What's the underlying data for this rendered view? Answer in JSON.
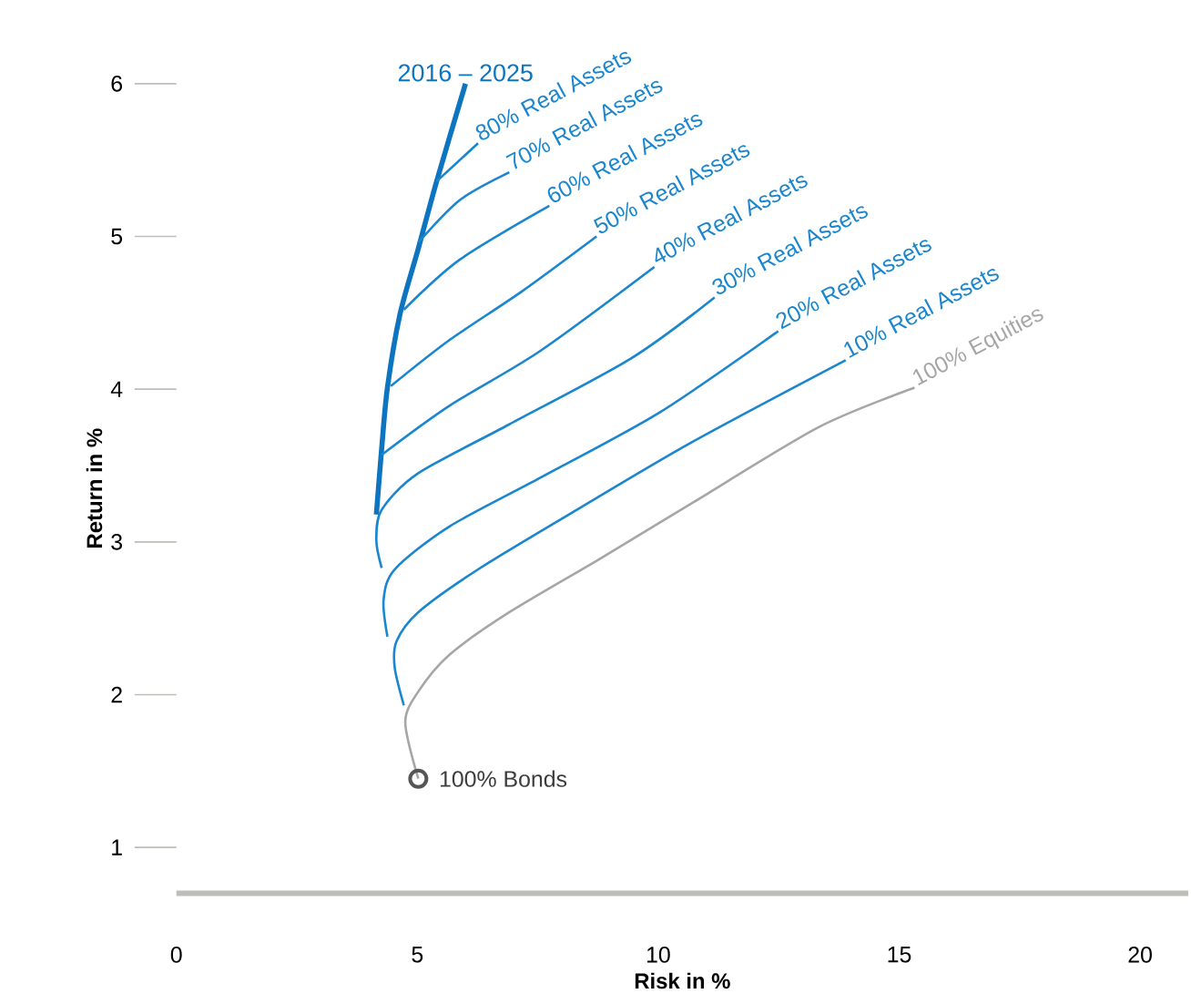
{
  "chart_data": {
    "type": "line",
    "xlabel": "Risk in %",
    "ylabel": "Return in %",
    "xlim": [
      0,
      21
    ],
    "ylim": [
      0.7,
      6
    ],
    "xticks": [
      0,
      5,
      10,
      15,
      20
    ],
    "yticks": [
      1,
      2,
      3,
      4,
      5,
      6
    ],
    "grid": false,
    "series": [
      {
        "name": "2016 – 2025",
        "color": "#0d74c0",
        "x": [
          4.15,
          4.26,
          4.38,
          4.64,
          5.02,
          5.4,
          6.0
        ],
        "values": [
          3.18,
          3.61,
          4.01,
          4.49,
          4.92,
          5.36,
          6.0
        ]
      },
      {
        "name": "80% Real Assets",
        "color": "#1a86cf",
        "x": [
          5.4,
          6.26
        ],
        "values": [
          5.36,
          5.61
        ]
      },
      {
        "name": "70% Real Assets",
        "color": "#1a86cf",
        "x": [
          5.02,
          5.89,
          6.91
        ],
        "values": [
          4.96,
          5.24,
          5.42
        ]
      },
      {
        "name": "60% Real Assets",
        "color": "#1a86cf",
        "x": [
          4.72,
          5.89,
          7.74
        ],
        "values": [
          4.52,
          4.85,
          5.2
        ]
      },
      {
        "name": "50% Real Assets",
        "color": "#1a86cf",
        "x": [
          4.45,
          5.66,
          7.17,
          8.72
        ],
        "values": [
          4.02,
          4.32,
          4.64,
          5.0
        ]
      },
      {
        "name": "40% Real Assets",
        "color": "#1a86cf",
        "x": [
          4.26,
          5.66,
          7.55,
          9.92
        ],
        "values": [
          3.57,
          3.89,
          4.25,
          4.8
        ]
      },
      {
        "name": "30% Real Assets",
        "color": "#1a86cf",
        "x": [
          4.26,
          4.15,
          4.26,
          5.02,
          6.91,
          9.43,
          11.17
        ],
        "values": [
          2.83,
          3.01,
          3.21,
          3.45,
          3.77,
          4.2,
          4.6
        ]
      },
      {
        "name": "20% Real Assets",
        "color": "#1a86cf",
        "x": [
          4.38,
          4.3,
          4.53,
          5.66,
          7.55,
          10.04,
          12.49
        ],
        "values": [
          2.38,
          2.62,
          2.82,
          3.1,
          3.42,
          3.85,
          4.38
        ]
      },
      {
        "name": "10% Real Assets",
        "color": "#1a86cf",
        "x": [
          4.72,
          4.53,
          4.57,
          5.02,
          6.26,
          8.15,
          10.68,
          13.89
        ],
        "values": [
          1.93,
          2.18,
          2.35,
          2.54,
          2.82,
          3.18,
          3.65,
          4.19
        ]
      },
      {
        "name": "100% Equities",
        "color": "#a6a6a6",
        "x": [
          5.02,
          4.75,
          5.02,
          5.66,
          6.91,
          8.79,
          10.68,
          13.32,
          15.32
        ],
        "values": [
          1.45,
          1.82,
          2.02,
          2.26,
          2.54,
          2.89,
          3.25,
          3.75,
          4.01
        ]
      },
      {
        "name": "100% Bonds",
        "type": "scatter",
        "marker": "circle",
        "color": "#555555",
        "x": [
          5.02
        ],
        "values": [
          1.45
        ]
      }
    ]
  }
}
